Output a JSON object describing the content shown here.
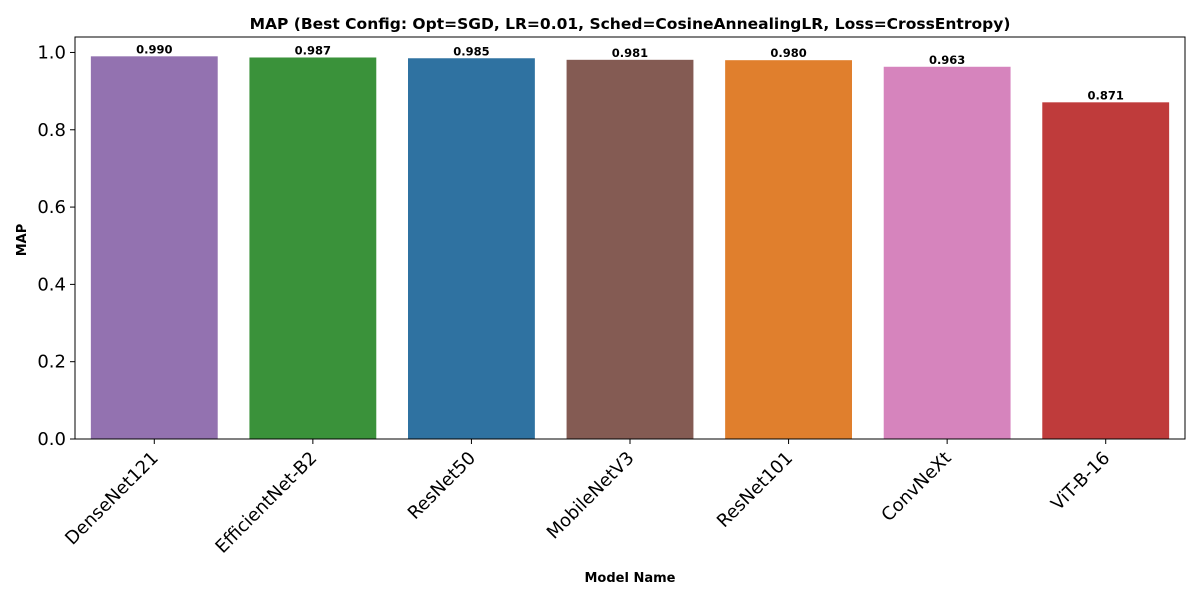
{
  "chart_data": {
    "type": "bar",
    "title": "MAP (Best Config: Opt=SGD, LR=0.01, Sched=CosineAnnealingLR, Loss=CrossEntropy)",
    "xlabel": "Model Name",
    "ylabel": "MAP",
    "categories": [
      "DenseNet121",
      "EfficientNet-B2",
      "ResNet50",
      "MobileNetV3",
      "ResNet101",
      "ConvNeXt",
      "ViT-B-16"
    ],
    "values": [
      0.99,
      0.987,
      0.985,
      0.981,
      0.98,
      0.963,
      0.871
    ],
    "value_labels": [
      "0.990",
      "0.987",
      "0.985",
      "0.981",
      "0.980",
      "0.963",
      "0.871"
    ],
    "colors": [
      "#9372b0",
      "#3a923a",
      "#2f72a1",
      "#845b53",
      "#e07f2d",
      "#d684bd",
      "#bf3b3b"
    ],
    "ylim": [
      0,
      1.04
    ],
    "yticks": [
      0.0,
      0.2,
      0.4,
      0.6,
      0.8,
      1.0
    ],
    "ytick_labels": [
      "0.0",
      "0.2",
      "0.4",
      "0.6",
      "0.8",
      "1.0"
    ],
    "grid": false,
    "legend": "none"
  }
}
